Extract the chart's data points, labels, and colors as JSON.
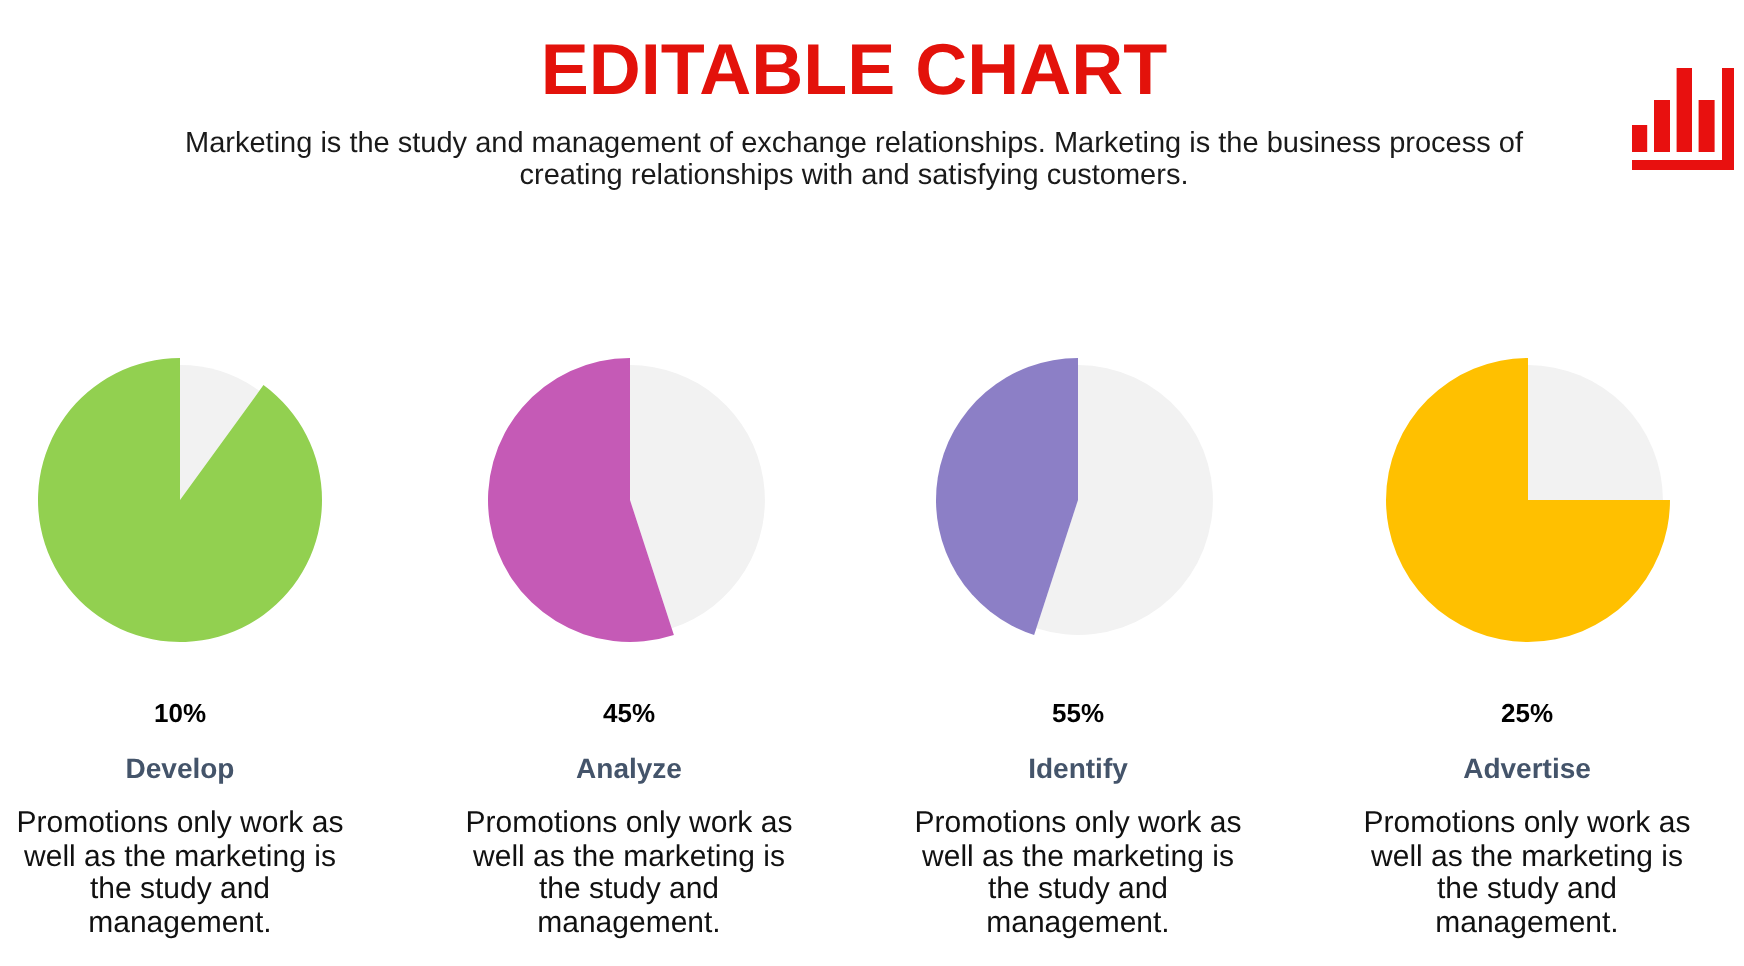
{
  "chart_data": [
    {
      "type": "other",
      "title": "EDITABLE CHART",
      "subtitle": "Marketing is the study and management of exchange relationships. Marketing is the business process of creating relationships with and satisfying customers."
    },
    {
      "type": "pie",
      "title": "Develop",
      "categories": [
        null,
        null
      ],
      "values": [
        10,
        90
      ],
      "colors": [
        "#f2f2f2",
        "#92d050"
      ],
      "annotations": [
        "10%",
        "Promotions only work as well as the marketing is the study and management."
      ]
    },
    {
      "type": "pie",
      "title": "Analyze",
      "categories": [
        null,
        null
      ],
      "values": [
        45,
        55
      ],
      "colors": [
        "#f2f2f2",
        "#c55ab6"
      ],
      "annotations": [
        "45%",
        "Promotions only work as well as the marketing is the study and management."
      ]
    },
    {
      "type": "pie",
      "title": "Identify",
      "categories": [
        null,
        null
      ],
      "values": [
        55,
        45
      ],
      "colors": [
        "#f2f2f2",
        "#8c7fc6"
      ],
      "annotations": [
        "55%",
        "Promotions only work as well as the marketing is the study and management."
      ]
    },
    {
      "type": "pie",
      "title": "Advertise",
      "categories": [
        null,
        null
      ],
      "values": [
        25,
        75
      ],
      "colors": [
        "#f2f2f2",
        "#ffc000"
      ],
      "annotations": [
        "25%",
        "Promotions only work as well as the marketing is the study and management."
      ]
    }
  ]
}
